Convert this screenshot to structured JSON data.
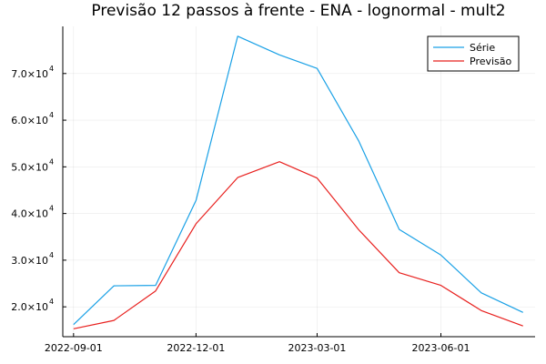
{
  "chart_data": {
    "type": "line",
    "title": "Previsão 12 passos à frente - ENA - lognormal - mult2",
    "xlabel": "",
    "ylabel": "",
    "x": [
      "2022-09-01",
      "2022-10-01",
      "2022-11-01",
      "2022-12-01",
      "2023-01-01",
      "2023-02-01",
      "2023-03-01",
      "2023-04-01",
      "2023-05-01",
      "2023-06-01",
      "2023-07-01",
      "2023-08-01"
    ],
    "x_ticks": [
      "2022-09-01",
      "2022-12-01",
      "2023-03-01",
      "2023-06-01"
    ],
    "y_ticks": [
      {
        "value": 20000,
        "mantissa": "2.0×10",
        "exp": "4"
      },
      {
        "value": 30000,
        "mantissa": "3.0×10",
        "exp": "4"
      },
      {
        "value": 40000,
        "mantissa": "4.0×10",
        "exp": "4"
      },
      {
        "value": 50000,
        "mantissa": "5.0×10",
        "exp": "4"
      },
      {
        "value": 60000,
        "mantissa": "6.0×10",
        "exp": "4"
      },
      {
        "value": 70000,
        "mantissa": "7.0×10",
        "exp": "4"
      }
    ],
    "ylim": [
      13600,
      80100
    ],
    "grid": true,
    "legend_position": "top-right",
    "series": [
      {
        "name": "Série",
        "color": "#1aa1e6",
        "values": [
          16200,
          24500,
          24600,
          42800,
          78000,
          74000,
          71100,
          55500,
          36600,
          31100,
          23000,
          18800
        ]
      },
      {
        "name": "Previsão",
        "color": "#e8201e",
        "values": [
          15300,
          17100,
          23400,
          37800,
          47700,
          51100,
          47600,
          36500,
          27300,
          24600,
          19200,
          15900
        ]
      }
    ]
  }
}
